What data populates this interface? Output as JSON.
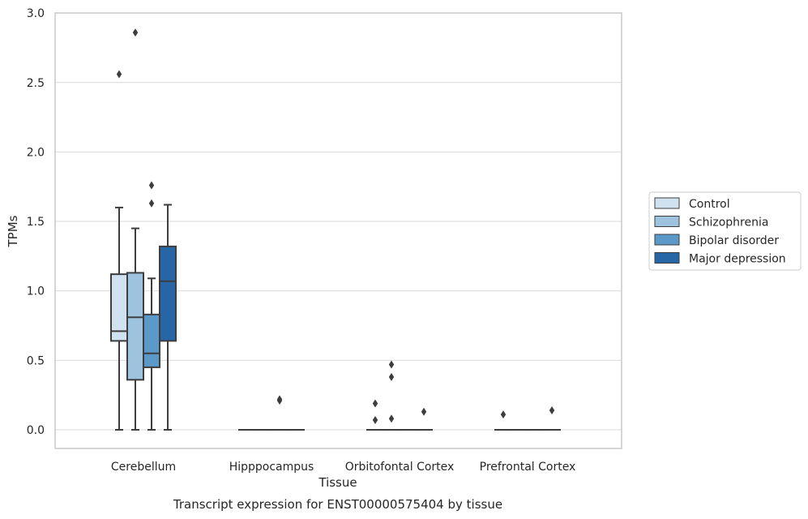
{
  "chart_data": {
    "type": "box",
    "categories": [
      "Cerebellum",
      "Hipppocampus",
      "Orbitofontal Cortex",
      "Prefrontal Cortex"
    ],
    "ylabel": "TPMs",
    "xlabel": "Tissue",
    "caption": "Transcript expression for ENST00000575404 by tissue",
    "ylim": [
      -0.13,
      3.0
    ],
    "yticks": [
      {
        "value": 0.0,
        "label": "0.0"
      },
      {
        "value": 0.5,
        "label": "0.5"
      },
      {
        "value": 1.0,
        "label": "1.0"
      },
      {
        "value": 1.5,
        "label": "1.5"
      },
      {
        "value": 2.0,
        "label": "2.0"
      },
      {
        "value": 2.5,
        "label": "2.5"
      },
      {
        "value": 3.0,
        "label": "3.0"
      }
    ],
    "grid": "horizontal",
    "legend_position": "right",
    "series": [
      {
        "name": "Control",
        "color": "#d0e1f0",
        "boxes": [
          {
            "whislo": 0.0,
            "q1": 0.64,
            "med": 0.71,
            "q3": 1.12,
            "whishi": 1.6,
            "fliers": [
              2.56
            ]
          },
          {
            "whislo": 0.0,
            "q1": 0.0,
            "med": 0.0,
            "q3": 0.0,
            "whishi": 0.0,
            "fliers": []
          },
          {
            "whislo": 0.0,
            "q1": 0.0,
            "med": 0.0,
            "q3": 0.0,
            "whishi": 0.0,
            "fliers": [
              0.19,
              0.07
            ]
          },
          {
            "whislo": 0.0,
            "q1": 0.0,
            "med": 0.0,
            "q3": 0.0,
            "whishi": 0.0,
            "fliers": [
              0.11
            ]
          }
        ]
      },
      {
        "name": "Schizophrenia",
        "color": "#9dc3de",
        "boxes": [
          {
            "whislo": 0.0,
            "q1": 0.36,
            "med": 0.81,
            "q3": 1.13,
            "whishi": 1.45,
            "fliers": [
              2.86
            ]
          },
          {
            "whislo": 0.0,
            "q1": 0.0,
            "med": 0.0,
            "q3": 0.0,
            "whishi": 0.0,
            "fliers": []
          },
          {
            "whislo": 0.0,
            "q1": 0.0,
            "med": 0.0,
            "q3": 0.0,
            "whishi": 0.0,
            "fliers": [
              0.47,
              0.38,
              0.08
            ]
          },
          {
            "whislo": 0.0,
            "q1": 0.0,
            "med": 0.0,
            "q3": 0.0,
            "whishi": 0.0,
            "fliers": []
          }
        ]
      },
      {
        "name": "Bipolar disorder",
        "color": "#5a99c8",
        "boxes": [
          {
            "whislo": 0.0,
            "q1": 0.45,
            "med": 0.55,
            "q3": 0.83,
            "whishi": 1.09,
            "fliers": [
              1.76,
              1.63
            ]
          },
          {
            "whislo": 0.0,
            "q1": 0.0,
            "med": 0.0,
            "q3": 0.0,
            "whishi": 0.0,
            "fliers": [
              0.22,
              0.21
            ]
          },
          {
            "whislo": 0.0,
            "q1": 0.0,
            "med": 0.0,
            "q3": 0.0,
            "whishi": 0.0,
            "fliers": []
          },
          {
            "whislo": 0.0,
            "q1": 0.0,
            "med": 0.0,
            "q3": 0.0,
            "whishi": 0.0,
            "fliers": []
          }
        ]
      },
      {
        "name": "Major depression",
        "color": "#2766a6",
        "boxes": [
          {
            "whislo": 0.0,
            "q1": 0.64,
            "med": 1.07,
            "q3": 1.32,
            "whishi": 1.62,
            "fliers": []
          },
          {
            "whislo": 0.0,
            "q1": 0.0,
            "med": 0.0,
            "q3": 0.0,
            "whishi": 0.0,
            "fliers": []
          },
          {
            "whislo": 0.0,
            "q1": 0.0,
            "med": 0.0,
            "q3": 0.0,
            "whishi": 0.0,
            "fliers": [
              0.13
            ]
          },
          {
            "whislo": 0.0,
            "q1": 0.0,
            "med": 0.0,
            "q3": 0.0,
            "whishi": 0.0,
            "fliers": [
              0.14
            ]
          }
        ]
      }
    ]
  }
}
